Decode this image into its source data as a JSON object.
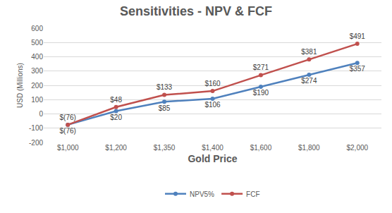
{
  "chart_data": {
    "type": "line",
    "title": "Sensitivities - NPV & FCF",
    "x_label": "Gold Price",
    "y_label": "USD (Millions)",
    "categories": [
      "$1,000",
      "$1,200",
      "$1,350",
      "$1,400",
      "$1,600",
      "$1,800",
      "$2,000"
    ],
    "series": [
      {
        "name": "NPV5%",
        "color": "#4f81bd",
        "marker": "circle",
        "values": [
          -76,
          20,
          85,
          106,
          190,
          274,
          357
        ],
        "value_labels": [
          "$(76)",
          "$20",
          "$85",
          "$106",
          "$190",
          "$274",
          "$357"
        ]
      },
      {
        "name": "FCF",
        "color": "#c0504d",
        "marker": "circle",
        "values": [
          -76,
          48,
          133,
          160,
          271,
          381,
          491
        ],
        "value_labels": [
          "$(76)",
          "$48",
          "$133",
          "$160",
          "$271",
          "$381",
          "$491"
        ]
      }
    ],
    "ylim": [
      -200,
      600
    ],
    "yticks": [
      -200,
      -100,
      0,
      100,
      200,
      300,
      400,
      500,
      600
    ],
    "grid": true,
    "legend": "bottom",
    "data_labels": true
  }
}
